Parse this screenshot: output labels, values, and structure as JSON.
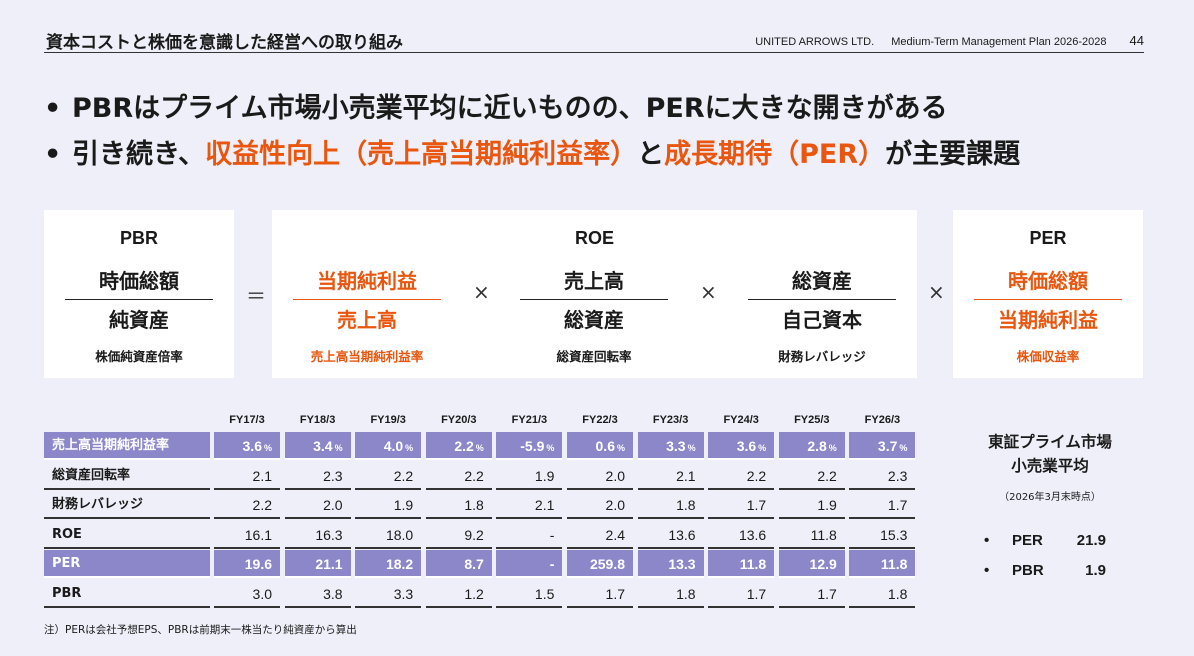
{
  "header": {
    "title": "資本コストと株価を意識した経営への取り組み",
    "company": "UNITED ARROWS LTD.",
    "plan": "Medium-Term Management Plan 2026-2028",
    "page": "44"
  },
  "bullets": [
    {
      "marker": "•",
      "parts": [
        "PBRはプライム市場小売業平均に近いものの、PERに大きな開きがある"
      ]
    },
    {
      "marker": "•",
      "p1": "引き続き、",
      "a1": "収益性向上（売上高当期純利益率）",
      "p2": "と",
      "a2": "成長期待（PER）",
      "p3": "が主要課題"
    }
  ],
  "formula": {
    "pbr": {
      "label": "PBR",
      "num": "時価総額",
      "den": "純資産",
      "note": "株価純資産倍率"
    },
    "equals": "＝",
    "roe_label": "ROE",
    "times": "×",
    "f1": {
      "num": "当期純利益",
      "den": "売上高",
      "note": "売上高当期純利益率"
    },
    "f2": {
      "num": "売上高",
      "den": "総資産",
      "note": "総資産回転率"
    },
    "f3": {
      "num": "総資産",
      "den": "自己資本",
      "note": "財務レバレッジ"
    },
    "per": {
      "label": "PER",
      "num": "時価総額",
      "den": "当期純利益",
      "note": "株価収益率"
    }
  },
  "table": {
    "years": [
      "FY17/3",
      "FY18/3",
      "FY19/3",
      "FY20/3",
      "FY21/3",
      "FY22/3",
      "FY23/3",
      "FY24/3",
      "FY25/3",
      "FY26/3"
    ],
    "pct_unit": "%",
    "rows": [
      {
        "label": "売上高当期純利益率",
        "values": [
          "3.6",
          "3.4",
          "4.0",
          "2.2",
          "-5.9",
          "0.6",
          "3.3",
          "3.6",
          "2.8",
          "3.7"
        ]
      },
      {
        "label": "総資産回転率",
        "values": [
          "2.1",
          "2.3",
          "2.2",
          "2.2",
          "1.9",
          "2.0",
          "2.1",
          "2.2",
          "2.2",
          "2.3"
        ]
      },
      {
        "label": "財務レバレッジ",
        "values": [
          "2.2",
          "2.0",
          "1.9",
          "1.8",
          "2.1",
          "2.0",
          "1.8",
          "1.7",
          "1.9",
          "1.7"
        ]
      },
      {
        "label": "ROE",
        "values": [
          "16.1",
          "16.3",
          "18.0",
          "9.2",
          "-",
          "2.4",
          "13.6",
          "13.6",
          "11.8",
          "15.3"
        ]
      },
      {
        "label": "PER",
        "values": [
          "19.6",
          "21.1",
          "18.2",
          "8.7",
          "-",
          "259.8",
          "13.3",
          "11.8",
          "12.9",
          "11.8"
        ]
      },
      {
        "label": "PBR",
        "values": [
          "3.0",
          "3.8",
          "3.3",
          "1.2",
          "1.5",
          "1.7",
          "1.8",
          "1.7",
          "1.7",
          "1.8"
        ]
      }
    ]
  },
  "footnote": "注）PERは会社予想EPS、PBRは前期末一株当たり純資産から算出",
  "market": {
    "title_line1": "東証プライム市場",
    "title_line2": "小売業平均",
    "note": "（2026年3月末時点）",
    "items": [
      {
        "marker": "•",
        "label": "PER",
        "value": "21.9"
      },
      {
        "marker": "•",
        "label": "PBR",
        "value": "1.9"
      }
    ]
  },
  "colors": {
    "accent": "#e8560f",
    "highlight_row": "#8b87c9",
    "background": "#efeff9"
  }
}
